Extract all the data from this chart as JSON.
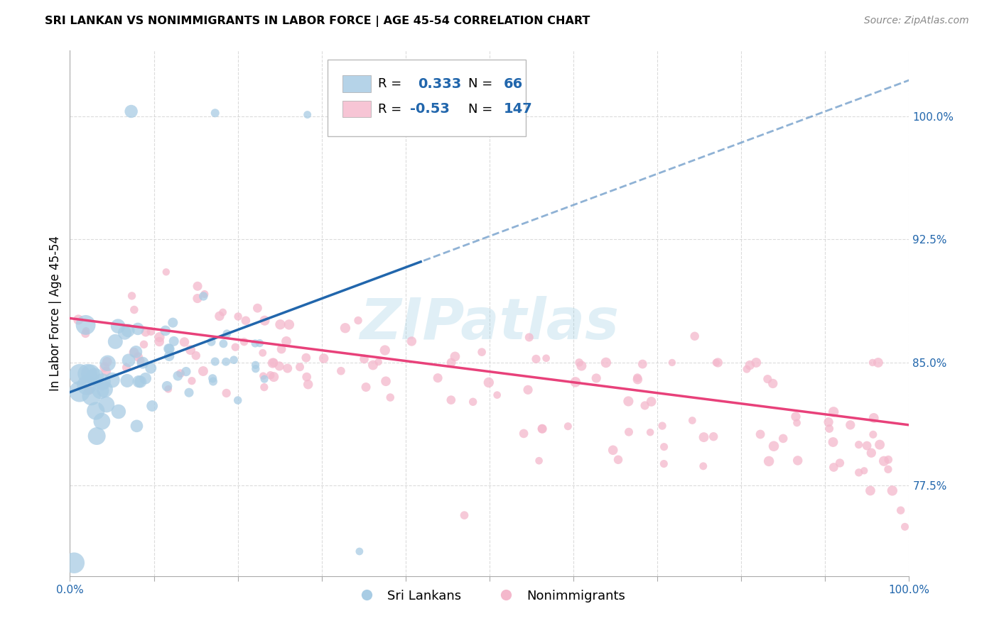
{
  "title": "SRI LANKAN VS NONIMMIGRANTS IN LABOR FORCE | AGE 45-54 CORRELATION CHART",
  "source": "Source: ZipAtlas.com",
  "ylabel": "In Labor Force | Age 45-54",
  "blue_R": 0.333,
  "blue_N": 66,
  "pink_R": -0.53,
  "pink_N": 147,
  "blue_scatter_color": "#a8cce4",
  "pink_scatter_color": "#f4b8cc",
  "blue_line_color": "#2166ac",
  "pink_line_color": "#e8417a",
  "legend_box_blue": "#b5d3e8",
  "legend_box_pink": "#f7c5d5",
  "background_color": "#ffffff",
  "grid_color": "#cccccc",
  "xlim": [
    0.0,
    1.0
  ],
  "ylim": [
    0.72,
    1.04
  ],
  "y_ticks": [
    0.775,
    0.85,
    0.925,
    1.0
  ],
  "watermark": "ZIPatlas",
  "label_color": "#2166ac"
}
